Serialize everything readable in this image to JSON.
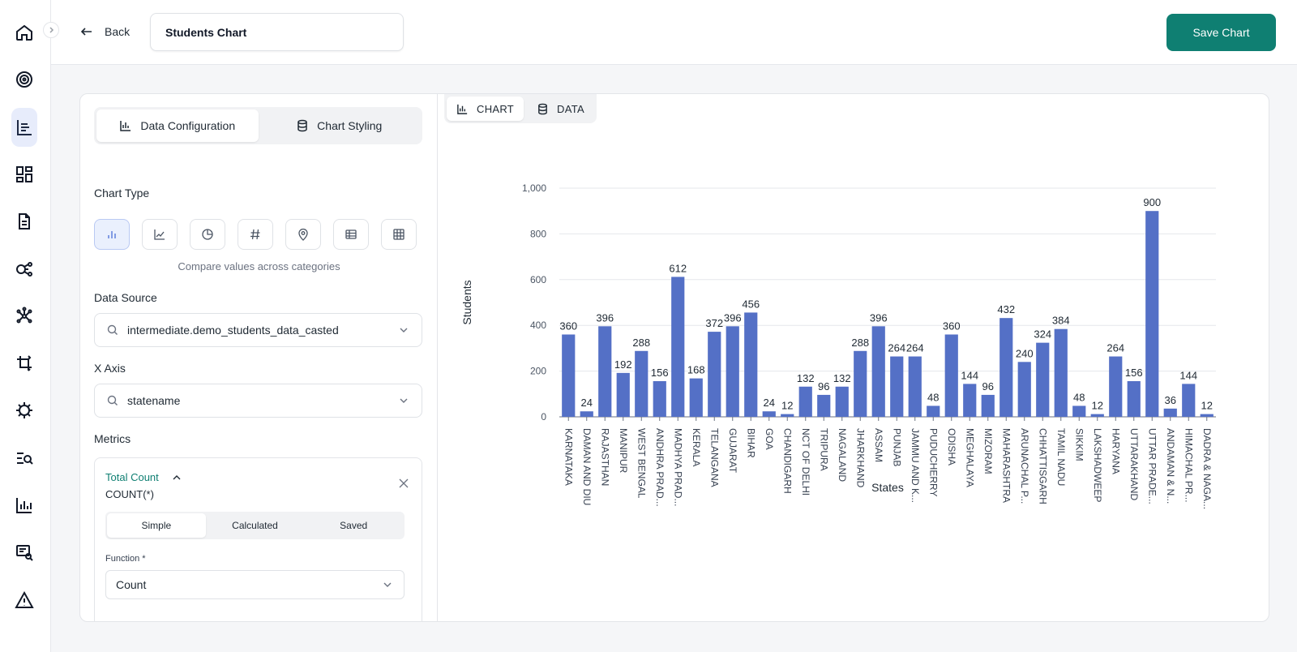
{
  "header": {
    "back_label": "Back",
    "chart_title": "Students Chart",
    "save_label": "Save Chart"
  },
  "sidebar": {
    "items": [
      {
        "icon": "home-icon"
      },
      {
        "icon": "target-icon"
      },
      {
        "icon": "chart-list-icon",
        "active": true
      },
      {
        "icon": "dashboard-icon"
      },
      {
        "icon": "document-icon"
      },
      {
        "icon": "pipeline-icon"
      },
      {
        "icon": "network-icon"
      },
      {
        "icon": "transform-icon"
      },
      {
        "icon": "virus-icon"
      },
      {
        "icon": "search-list-icon"
      },
      {
        "icon": "bar-chart-icon"
      },
      {
        "icon": "report-search-icon"
      },
      {
        "icon": "warning-icon"
      }
    ]
  },
  "config": {
    "tabs": [
      {
        "label": "Data Configuration",
        "active": true
      },
      {
        "label": "Chart Styling",
        "active": false
      }
    ],
    "chart_type_label": "Chart Type",
    "chart_types": [
      "bar-chart-icon",
      "line-chart-icon",
      "pie-chart-icon",
      "number-icon",
      "map-pin-icon",
      "table-icon",
      "pivot-table-icon"
    ],
    "chart_type_help": "Compare values across categories",
    "data_source_label": "Data Source",
    "data_source_value": "intermediate.demo_students_data_casted",
    "x_axis_label": "X Axis",
    "x_axis_value": "statename",
    "metrics_label": "Metrics",
    "metric": {
      "name": "Total Count",
      "expression": "COUNT(*)",
      "tabs": [
        "Simple",
        "Calculated",
        "Saved"
      ],
      "active_tab": "Simple",
      "function_label": "Function *",
      "function_value": "Count"
    }
  },
  "view_tabs": [
    {
      "label": "CHART",
      "active": true
    },
    {
      "label": "DATA",
      "active": false
    }
  ],
  "colors": {
    "accent": "#0f7f72",
    "bar": "#5470c6"
  },
  "chart_data": {
    "type": "bar",
    "xlabel": "States",
    "ylabel": "Students",
    "ylim": [
      0,
      1000
    ],
    "yticks": [
      "0",
      "200",
      "400",
      "600",
      "800",
      "1,000"
    ],
    "grid": true,
    "categories": [
      "KARNATAKA",
      "DAMAN AND DIU",
      "RAJASTHAN",
      "MANIPUR",
      "WEST BENGAL",
      "ANDHRA PRAD...",
      "MADHYA PRAD...",
      "KERALA",
      "TELANGANA",
      "GUJARAT",
      "BIHAR",
      "GOA",
      "CHANDIGARH",
      "NCT OF DELHI",
      "TRIPURA",
      "NAGALAND",
      "JHARKHAND",
      "ASSAM",
      "PUNJAB",
      "JAMMU AND K...",
      "PUDUCHERRY",
      "ODISHA",
      "MEGHALAYA",
      "MIZORAM",
      "MAHARASHTRA",
      "ARUNACHAL P...",
      "CHHATTISGARH",
      "TAMIL NADU",
      "SIKKIM",
      "LAKSHADWEEP",
      "HARYANA",
      "UTTARAKHAND",
      "UTTAR PRADE...",
      "ANDAMAN & N...",
      "HIMACHAL PR...",
      "DADRA & NAGA..."
    ],
    "values": [
      360,
      24,
      396,
      192,
      288,
      156,
      612,
      168,
      372,
      396,
      456,
      24,
      12,
      132,
      96,
      132,
      288,
      396,
      264,
      264,
      48,
      360,
      144,
      96,
      432,
      240,
      324,
      384,
      48,
      12,
      264,
      156,
      900,
      36,
      144,
      12
    ]
  }
}
